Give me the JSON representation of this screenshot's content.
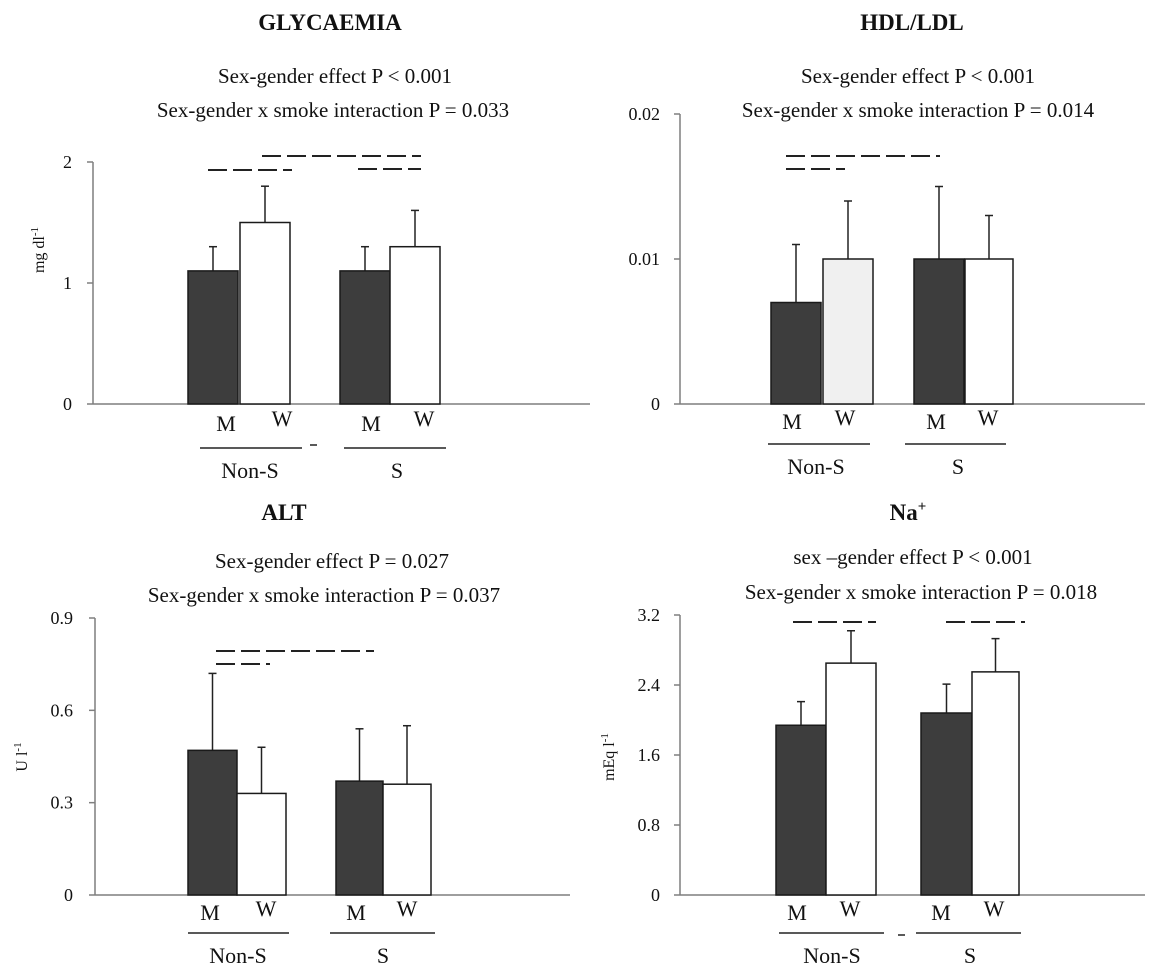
{
  "colors": {
    "men": "#3d3d3d",
    "women": "#ffffff",
    "women_hdl": "#f0f0f0",
    "axis": "#7f7f7f",
    "line": "#222222"
  },
  "chart_data": [
    {
      "type": "bar",
      "title": "GLYCAEMIA",
      "stats": [
        "Sex-gender effect P < 0.001",
        "Sex-gender x smoke interaction  P = 0.033"
      ],
      "ylabel": "mg dl",
      "ylabel_sup": "-1",
      "ylim": [
        0,
        2
      ],
      "yticks": [
        "0",
        "1",
        "2"
      ],
      "categories": [
        "M",
        "W",
        "M",
        "W"
      ],
      "groups": [
        "Non-S",
        "S"
      ],
      "series": [
        {
          "values": [
            1.1,
            1.5,
            1.1,
            1.3
          ],
          "errors": [
            0.2,
            0.3,
            0.2,
            0.3
          ]
        }
      ]
    },
    {
      "type": "bar",
      "title": "HDL/LDL",
      "stats": [
        "Sex-gender effect P < 0.001",
        "Sex-gender x smoke interaction  P = 0.014"
      ],
      "ylabel": "",
      "ylabel_sup": "",
      "ylim": [
        0,
        0.02
      ],
      "yticks": [
        "0",
        "0.01",
        "0.02"
      ],
      "categories": [
        "M",
        "W",
        "M",
        "W"
      ],
      "groups": [
        "Non-S",
        "S"
      ],
      "series": [
        {
          "values": [
            0.007,
            0.01,
            0.01,
            0.01
          ],
          "errors": [
            0.004,
            0.004,
            0.005,
            0.003
          ]
        }
      ]
    },
    {
      "type": "bar",
      "title": "ALT",
      "stats": [
        "Sex-gender effect P = 0.027",
        "Sex-gender x smoke interaction   P = 0.037"
      ],
      "ylabel": "U l",
      "ylabel_sup": "-1",
      "ylim": [
        0,
        0.9
      ],
      "yticks": [
        "0",
        "0.3",
        "0.6",
        "0.9"
      ],
      "categories": [
        "M",
        "W",
        "M",
        "W"
      ],
      "groups": [
        "Non-S",
        "S"
      ],
      "series": [
        {
          "values": [
            0.47,
            0.33,
            0.37,
            0.36
          ],
          "errors": [
            0.25,
            0.15,
            0.17,
            0.19
          ]
        }
      ]
    },
    {
      "type": "bar",
      "title": "Na",
      "title_sup": "+",
      "stats": [
        "sex –gender effect P < 0.001",
        "Sex-gender x smoke interaction P = 0.018"
      ],
      "ylabel": "mEq l",
      "ylabel_sup": "-1",
      "ylim": [
        0,
        3.2
      ],
      "yticks": [
        "0",
        "0.8",
        "1.6",
        "2.4",
        "3.2"
      ],
      "categories": [
        "M",
        "W",
        "M",
        "W"
      ],
      "groups": [
        "Non-S",
        "S"
      ],
      "series": [
        {
          "values": [
            1.94,
            2.65,
            2.08,
            2.55
          ],
          "errors": [
            0.27,
            0.37,
            0.33,
            0.38
          ]
        }
      ]
    }
  ]
}
